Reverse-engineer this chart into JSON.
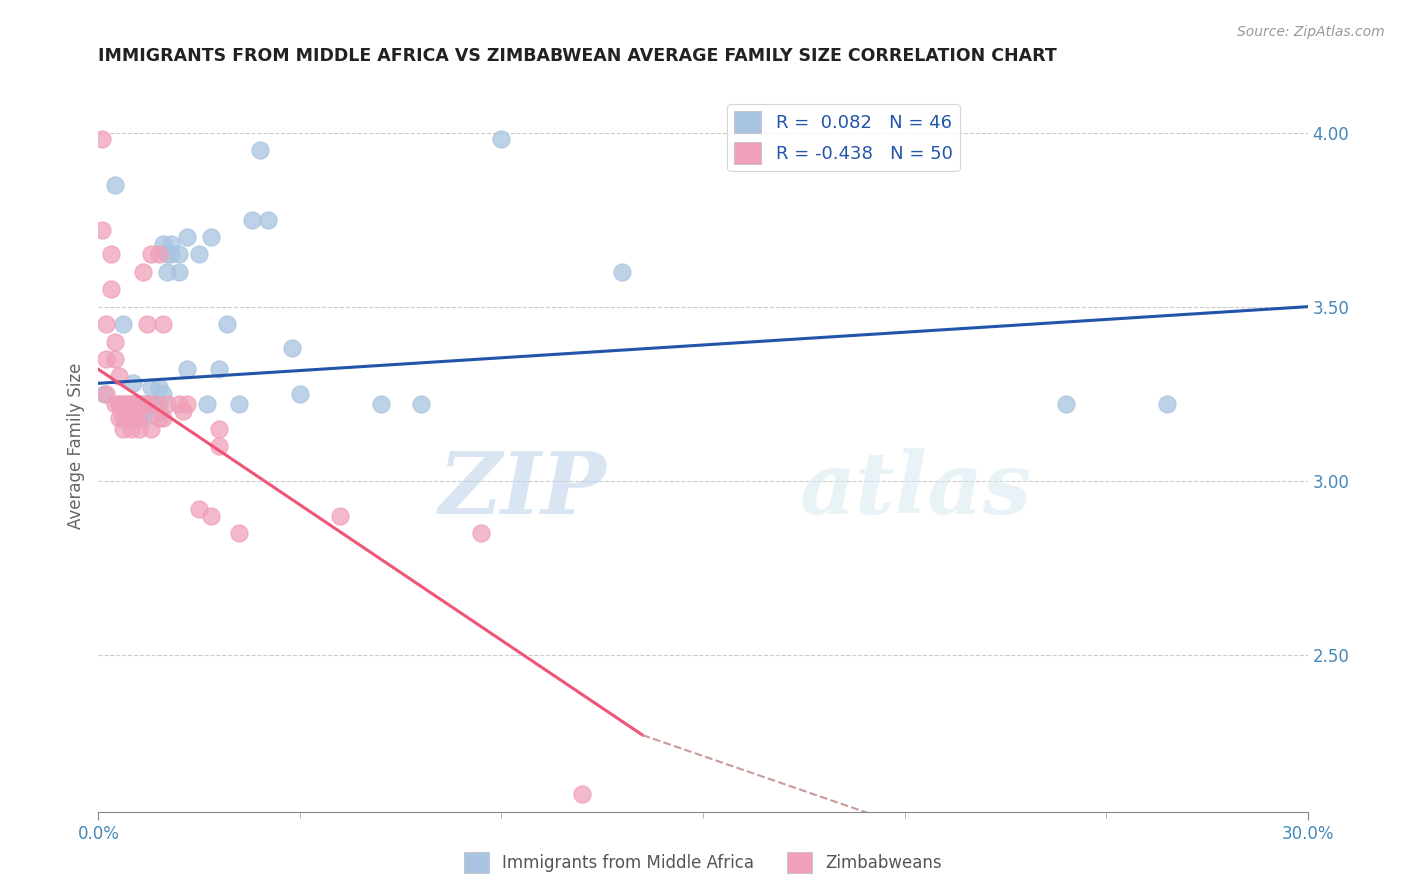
{
  "title": "IMMIGRANTS FROM MIDDLE AFRICA VS ZIMBABWEAN AVERAGE FAMILY SIZE CORRELATION CHART",
  "source": "Source: ZipAtlas.com",
  "ylabel": "Average Family Size",
  "xlim": [
    0.0,
    0.3
  ],
  "ylim_data": [
    2.05,
    4.15
  ],
  "yticks_right": [
    2.5,
    3.0,
    3.5,
    4.0
  ],
  "xticks": [
    0.0,
    0.3
  ],
  "xtick_labels": [
    "0.0%",
    "30.0%"
  ],
  "color_blue": "#a8c4e0",
  "color_pink": "#f0a0b8",
  "color_blue_line": "#2255aa",
  "color_pink_line": "#ee5577",
  "color_dashed": "#cc9999",
  "watermark_zip": "ZIP",
  "watermark_atlas": "atlas",
  "blue_scatter_x": [
    0.0015,
    0.004,
    0.006,
    0.007,
    0.008,
    0.0085,
    0.009,
    0.01,
    0.0105,
    0.011,
    0.011,
    0.012,
    0.012,
    0.013,
    0.013,
    0.014,
    0.015,
    0.015,
    0.015,
    0.016,
    0.016,
    0.017,
    0.017,
    0.018,
    0.018,
    0.02,
    0.02,
    0.022,
    0.022,
    0.025,
    0.027,
    0.028,
    0.03,
    0.032,
    0.035,
    0.038,
    0.04,
    0.042,
    0.048,
    0.05,
    0.07,
    0.08,
    0.1,
    0.13,
    0.24,
    0.265
  ],
  "blue_scatter_y": [
    3.25,
    3.85,
    3.45,
    3.22,
    3.22,
    3.28,
    3.22,
    3.2,
    3.22,
    3.2,
    3.18,
    3.22,
    3.22,
    3.27,
    3.22,
    3.22,
    3.2,
    3.27,
    3.22,
    3.68,
    3.25,
    3.6,
    3.65,
    3.65,
    3.68,
    3.6,
    3.65,
    3.7,
    3.32,
    3.65,
    3.22,
    3.7,
    3.32,
    3.45,
    3.22,
    3.75,
    3.95,
    3.75,
    3.38,
    3.25,
    3.22,
    3.22,
    3.98,
    3.6,
    3.22,
    3.22
  ],
  "pink_scatter_x": [
    0.001,
    0.001,
    0.002,
    0.002,
    0.002,
    0.003,
    0.003,
    0.004,
    0.004,
    0.004,
    0.005,
    0.005,
    0.005,
    0.005,
    0.006,
    0.006,
    0.006,
    0.007,
    0.007,
    0.008,
    0.008,
    0.008,
    0.009,
    0.009,
    0.01,
    0.01,
    0.01,
    0.011,
    0.011,
    0.012,
    0.012,
    0.013,
    0.013,
    0.014,
    0.015,
    0.015,
    0.016,
    0.016,
    0.017,
    0.02,
    0.021,
    0.022,
    0.025,
    0.028,
    0.03,
    0.03,
    0.035,
    0.06,
    0.095,
    0.12
  ],
  "pink_scatter_y": [
    3.98,
    3.72,
    3.45,
    3.35,
    3.25,
    3.65,
    3.55,
    3.4,
    3.35,
    3.22,
    3.3,
    3.22,
    3.22,
    3.18,
    3.22,
    3.18,
    3.15,
    3.22,
    3.18,
    3.22,
    3.18,
    3.15,
    3.22,
    3.18,
    3.22,
    3.18,
    3.15,
    3.22,
    3.6,
    3.22,
    3.45,
    3.65,
    3.15,
    3.22,
    3.18,
    3.65,
    3.18,
    3.45,
    3.22,
    3.22,
    3.2,
    3.22,
    2.92,
    2.9,
    3.15,
    3.1,
    2.85,
    2.9,
    2.85,
    2.1
  ],
  "blue_line_x": [
    0.0,
    0.3
  ],
  "blue_line_y": [
    3.28,
    3.5
  ],
  "pink_line_x": [
    0.0,
    0.135
  ],
  "pink_line_y": [
    3.32,
    2.27
  ],
  "dashed_line_x": [
    0.135,
    0.265
  ],
  "dashed_line_y": [
    2.27,
    1.75
  ],
  "figsize": [
    14.06,
    8.92
  ],
  "dpi": 100
}
